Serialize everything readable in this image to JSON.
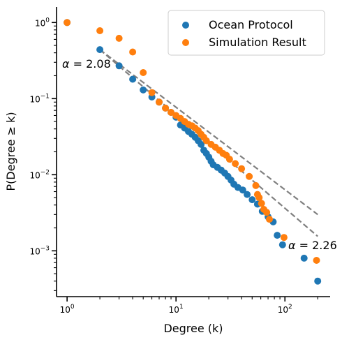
{
  "chart_data": {
    "type": "scatter",
    "xlabel": "Degree (k)",
    "ylabel": "P(Degree ≥ k)",
    "xscale": "log",
    "yscale": "log",
    "xlim": [
      0.8,
      260
    ],
    "ylim": [
      0.00025,
      1.6
    ],
    "grid": false,
    "legend_position": "top-right",
    "x_ticks": [
      {
        "value": 1,
        "base": "10",
        "exp": "0"
      },
      {
        "value": 10,
        "base": "10",
        "exp": "1"
      },
      {
        "value": 100,
        "base": "10",
        "exp": "2"
      }
    ],
    "y_ticks": [
      {
        "value": 0.001,
        "base": "10",
        "exp": "−3"
      },
      {
        "value": 0.01,
        "base": "10",
        "exp": "−2"
      },
      {
        "value": 0.1,
        "base": "10",
        "exp": "−1"
      },
      {
        "value": 1,
        "base": "10",
        "exp": "0"
      }
    ],
    "series": [
      {
        "name": "Ocean Protocol",
        "color": "#1f77b4",
        "points": [
          [
            1,
            1.0
          ],
          [
            2,
            0.44
          ],
          [
            3,
            0.27
          ],
          [
            4,
            0.18
          ],
          [
            5,
            0.13
          ],
          [
            6,
            0.105
          ],
          [
            7,
            0.09
          ],
          [
            8,
            0.075
          ],
          [
            9,
            0.066
          ],
          [
            10,
            0.057
          ],
          [
            11,
            0.045
          ],
          [
            12,
            0.041
          ],
          [
            13,
            0.037
          ],
          [
            14,
            0.034
          ],
          [
            15,
            0.031
          ],
          [
            16,
            0.028
          ],
          [
            17,
            0.025
          ],
          [
            18,
            0.021
          ],
          [
            19,
            0.019
          ],
          [
            20,
            0.017
          ],
          [
            21,
            0.015
          ],
          [
            22,
            0.0135
          ],
          [
            24,
            0.0125
          ],
          [
            26,
            0.0115
          ],
          [
            28,
            0.0105
          ],
          [
            30,
            0.0095
          ],
          [
            32,
            0.0085
          ],
          [
            34,
            0.0075
          ],
          [
            37,
            0.0068
          ],
          [
            41,
            0.0063
          ],
          [
            45,
            0.0055
          ],
          [
            50,
            0.0047
          ],
          [
            56,
            0.0041
          ],
          [
            62,
            0.0033
          ],
          [
            70,
            0.0028
          ],
          [
            78,
            0.0024
          ],
          [
            85,
            0.0016
          ],
          [
            95,
            0.0012
          ],
          [
            150,
            0.0008
          ],
          [
            200,
            0.0004
          ]
        ]
      },
      {
        "name": "Simulation Result",
        "color": "#ff7f0e",
        "points": [
          [
            1,
            1.0
          ],
          [
            2,
            0.78
          ],
          [
            3,
            0.62
          ],
          [
            4,
            0.41
          ],
          [
            5,
            0.22
          ],
          [
            6,
            0.12
          ],
          [
            7,
            0.09
          ],
          [
            8,
            0.075
          ],
          [
            9,
            0.066
          ],
          [
            10,
            0.06
          ],
          [
            11,
            0.055
          ],
          [
            12,
            0.05
          ],
          [
            13,
            0.046
          ],
          [
            14,
            0.044
          ],
          [
            15,
            0.041
          ],
          [
            16,
            0.038
          ],
          [
            17,
            0.034
          ],
          [
            18,
            0.031
          ],
          [
            19,
            0.028
          ],
          [
            21,
            0.025
          ],
          [
            23,
            0.023
          ],
          [
            25,
            0.021
          ],
          [
            27,
            0.019
          ],
          [
            29,
            0.018
          ],
          [
            31,
            0.016
          ],
          [
            35,
            0.014
          ],
          [
            40,
            0.012
          ],
          [
            47,
            0.0095
          ],
          [
            54,
            0.0072
          ],
          [
            56,
            0.0055
          ],
          [
            58,
            0.005
          ],
          [
            61,
            0.0042
          ],
          [
            64,
            0.0035
          ],
          [
            68,
            0.0032
          ],
          [
            72,
            0.0026
          ],
          [
            98,
            0.0015
          ],
          [
            195,
            0.00075
          ]
        ]
      }
    ],
    "fit_lines": [
      {
        "x": [
          2,
          200
        ],
        "y": [
          0.44,
          0.003
        ],
        "color": "#808080",
        "style": "dashed"
      },
      {
        "x": [
          2,
          200
        ],
        "y": [
          0.44,
          0.00155
        ],
        "color": "#808080",
        "style": "dashed"
      }
    ],
    "annotations": [
      {
        "symbol": "α",
        "text": " = 2.08",
        "anchor": "upper-left-fit"
      },
      {
        "symbol": "α",
        "text": " = 2.26",
        "anchor": "lower-right-fit"
      }
    ]
  }
}
